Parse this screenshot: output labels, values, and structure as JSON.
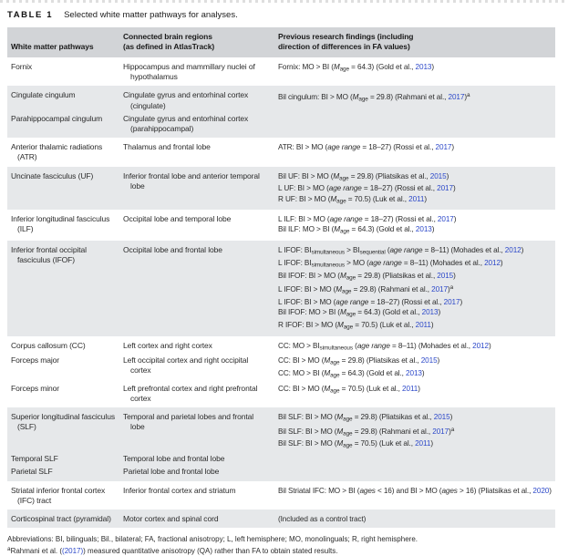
{
  "title": {
    "label": "TABLE 1",
    "caption": "Selected white matter pathways for analyses."
  },
  "columns": {
    "pathways": "White matter pathways",
    "regions": "Connected brain regions\n(as defined in AtlasTrack)",
    "findings": "Previous research findings (including\ndirection of differences in FA values)"
  },
  "colors": {
    "link_blue": "#2c48c9",
    "header_band": "#d2d4d7",
    "row_shade": "#e6e8ea"
  },
  "table": {
    "groups": [
      {
        "shade": false,
        "entries": [
          {
            "pathway": "Fornix",
            "regions": "Hippocampus and mammillary nuclei of hypothalamus",
            "findings": [
              "Fornix: MO > BI (*M*~age~ = 64.3) (Gold et al., {2013})"
            ]
          }
        ]
      },
      {
        "shade": true,
        "entries": [
          {
            "pathway": "Cingulate cingulum",
            "regions": "Cingulate gyrus and entorhinal cortex (cingulate)",
            "findings": [
              "Bil cingulum: BI > MO (*M*~age~ = 29.8) (Rahmani et al., {2017})^a^"
            ]
          },
          {
            "pathway": "Parahippocampal cingulum",
            "regions": "Cingulate gyrus and entorhinal cortex (parahippocampal)",
            "findings": []
          }
        ]
      },
      {
        "shade": false,
        "entries": [
          {
            "pathway": "Anterior thalamic radiations (ATR)",
            "regions": "Thalamus and frontal lobe",
            "findings": [
              "ATR: BI > MO (*age range* = 18–27) (Rossi et al., {2017})"
            ]
          }
        ]
      },
      {
        "shade": true,
        "entries": [
          {
            "pathway": "Uncinate fasciculus (UF)",
            "regions": "Inferior frontal lobe and anterior temporal lobe",
            "findings": [
              "Bil UF: BI > MO (*M*~age~ = 29.8) (Pliatsikas et al., {2015})",
              "L UF: BI > MO (*age range* = 18–27) (Rossi et al., {2017})",
              "R UF: BI > MO (*M*~age~ = 70.5) (Luk et al., {2011})"
            ]
          }
        ]
      },
      {
        "shade": false,
        "entries": [
          {
            "pathway": "Inferior longitudinal fasciculus (ILF)",
            "regions": "Occipital lobe and temporal lobe",
            "findings": [
              "L ILF: BI > MO (*age range* = 18–27) (Rossi et al., {2017})",
              "Bil ILF: MO > BI (*M*~age~ = 64.3) (Gold et al., {2013})"
            ]
          }
        ]
      },
      {
        "shade": true,
        "entries": [
          {
            "pathway": "Inferior frontal occipital fasciculus (IFOF)",
            "regions": "Occipital lobe and frontal lobe",
            "findings": [
              "L IFOF: BI~simultaneous~ > BI~sequential~ (*age range* = 8–11) (Mohades et al., {2012})",
              "L IFOF: BI~simultaneous~ > MO (*age range* = 8–11) (Mohades et al., {2012})",
              "Bil IFOF: BI > MO (*M*~age~ = 29.8) (Pliatsikas et al., {2015})",
              "L IFOF: BI > MO (*M*~age~ = 29.8) (Rahmani et al., {2017})^a^",
              "L IFOF: BI > MO (*age range* = 18–27) (Rossi et al., {2017})",
              "Bil IFOF: MO > BI (*M*~age~ = 64.3) (Gold et al., {2013})",
              "R IFOF: BI > MO (*M*~age~ = 70.5) (Luk et al., {2011})"
            ]
          }
        ]
      },
      {
        "shade": false,
        "entries": [
          {
            "pathway": "Corpus callosum (CC)",
            "regions": "Left cortex and right cortex",
            "findings": [
              "CC: MO > BI~simultaneous~ (*age range* = 8–11) (Mohades et al., {2012})"
            ]
          },
          {
            "pathway": "Forceps major",
            "regions": "Left occipital cortex and right occipital cortex",
            "findings": [
              "CC: BI > MO (*M*~age~ = 29.8) (Pliatsikas et al., {2015})",
              "CC: MO > BI (*M*~age~ = 64.3) (Gold et al., {2013})"
            ]
          },
          {
            "pathway": "Forceps minor",
            "regions": "Left prefrontal cortex and right prefrontal cortex",
            "findings": [
              "CC: BI > MO (*M*~age~ = 70.5) (Luk et al., {2011})"
            ]
          }
        ]
      },
      {
        "shade": true,
        "entries": [
          {
            "pathway": "Superior longitudinal fasciculus (SLF)",
            "regions": "Temporal and parietal lobes and frontal lobe",
            "findings": [
              "Bil SLF: BI > MO (*M*~age~ = 29.8) (Pliatsikas et al., {2015})",
              "Bil SLF: BI > MO (*M*~age~ = 29.8) (Rahmani et al., {2017})^a^",
              "Bil SLF: BI > MO (*M*~age~ = 70.5) (Luk et al., {2011})"
            ]
          },
          {
            "pathway": "Temporal SLF",
            "regions": "Temporal lobe and frontal lobe",
            "findings": []
          },
          {
            "pathway": "Parietal SLF",
            "regions": "Parietal lobe and frontal lobe",
            "findings": []
          }
        ]
      },
      {
        "shade": false,
        "entries": [
          {
            "pathway": "Striatal inferior frontal cortex (IFC) tract",
            "regions": "Inferior frontal cortex and striatum",
            "findings": [
              "Bil Striatal IFC: MO > BI (*ages* < 16) and BI > MO (*ages* > 16) (Pliatsikas et al., {2020})"
            ]
          }
        ]
      },
      {
        "shade": true,
        "entries": [
          {
            "pathway": "Corticospinal tract (pyramidal)",
            "regions": "Motor cortex and spinal cord",
            "findings": [
              "(Included as a control tract)"
            ]
          }
        ]
      }
    ]
  },
  "footer": {
    "abbreviations": "Abbreviations: BI, bilinguals; Bil., bilateral; FA, fractional anisotropy; L, left hemisphere; MO, monolinguals; R, right hemisphere.",
    "footnote": "^a^Rahmani et al. ({(2017)}) measured quantitative anisotropy (QA) rather than FA to obtain stated results."
  }
}
